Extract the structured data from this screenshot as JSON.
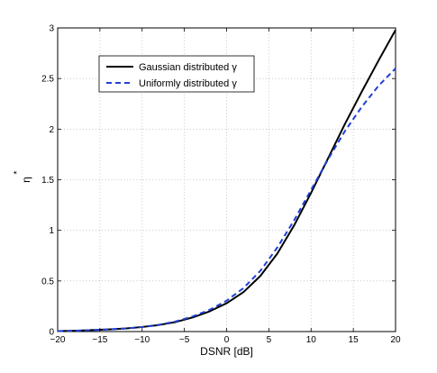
{
  "chart_data": {
    "type": "line",
    "title": "",
    "xlabel": "DSNR [dB]",
    "ylabel": "η",
    "ylabel_superscript": "*",
    "xlim": [
      -20,
      20
    ],
    "ylim": [
      0,
      3
    ],
    "xticks": [
      -20,
      -15,
      -10,
      -5,
      0,
      5,
      10,
      15,
      20
    ],
    "yticks": [
      0,
      0.5,
      1,
      1.5,
      2,
      2.5,
      3
    ],
    "xtick_labels": [
      "−20",
      "−15",
      "−10",
      "−5",
      "0",
      "5",
      "10",
      "15",
      "20"
    ],
    "ytick_labels": [
      "0",
      "0.5",
      "1",
      "1.5",
      "2",
      "2.5",
      "3"
    ],
    "grid": true,
    "legend_position": "top-left",
    "series": [
      {
        "name": "Gaussian distributed γ",
        "color": "#000000",
        "style": "solid",
        "x": [
          -20,
          -18,
          -16,
          -14,
          -12,
          -10,
          -8,
          -6,
          -4,
          -2,
          0,
          2,
          4,
          6,
          8,
          10,
          12,
          14,
          16,
          18,
          20
        ],
        "y": [
          0.005,
          0.008,
          0.014,
          0.021,
          0.03,
          0.045,
          0.065,
          0.095,
          0.14,
          0.2,
          0.28,
          0.39,
          0.55,
          0.77,
          1.05,
          1.37,
          1.71,
          2.05,
          2.37,
          2.68,
          2.98
        ]
      },
      {
        "name": "Uniformly distributed γ",
        "color": "#1f3fd6",
        "style": "dashed",
        "x": [
          -20,
          -18,
          -16,
          -14,
          -12,
          -10,
          -8,
          -6,
          -4,
          -2,
          0,
          2,
          4,
          6,
          8,
          10,
          12,
          14,
          16,
          18,
          20
        ],
        "y": [
          0.005,
          0.008,
          0.014,
          0.021,
          0.03,
          0.045,
          0.067,
          0.1,
          0.15,
          0.215,
          0.305,
          0.43,
          0.6,
          0.83,
          1.1,
          1.4,
          1.7,
          1.98,
          2.22,
          2.43,
          2.6
        ]
      }
    ]
  }
}
